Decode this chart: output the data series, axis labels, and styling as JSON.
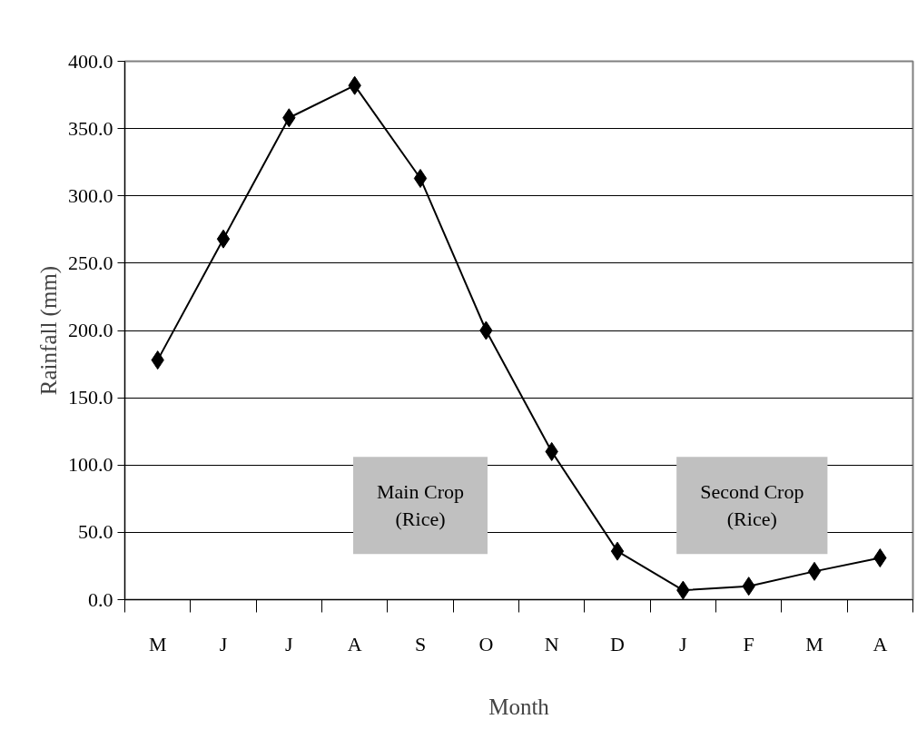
{
  "chart_data": {
    "type": "line",
    "xlabel": "Month",
    "ylabel": "Rainfall (mm)",
    "categories": [
      "M",
      "J",
      "J",
      "A",
      "S",
      "O",
      "N",
      "D",
      "J",
      "F",
      "M",
      "A"
    ],
    "series": [
      {
        "color": "#000000",
        "values": [
          178,
          268,
          358,
          382,
          313,
          200,
          110,
          36,
          7,
          10,
          21,
          31
        ]
      }
    ],
    "ylim": [
      0,
      400
    ],
    "yticks": [
      {
        "value": 0,
        "label": "0.0"
      },
      {
        "value": 50,
        "label": "50.0"
      },
      {
        "value": 100,
        "label": "100.0"
      },
      {
        "value": 150,
        "label": "150.0"
      },
      {
        "value": 200,
        "label": "200.0"
      },
      {
        "value": 250,
        "label": "250.0"
      },
      {
        "value": 300,
        "label": "300.0"
      },
      {
        "value": 350,
        "label": "350.0"
      },
      {
        "value": 400,
        "label": "400.0"
      }
    ],
    "grid": "y",
    "marker": "diamond",
    "line_style": "solid",
    "annotations": [
      "Main Crop\n(Rice)",
      "Second Crop\n(Rice)"
    ]
  }
}
